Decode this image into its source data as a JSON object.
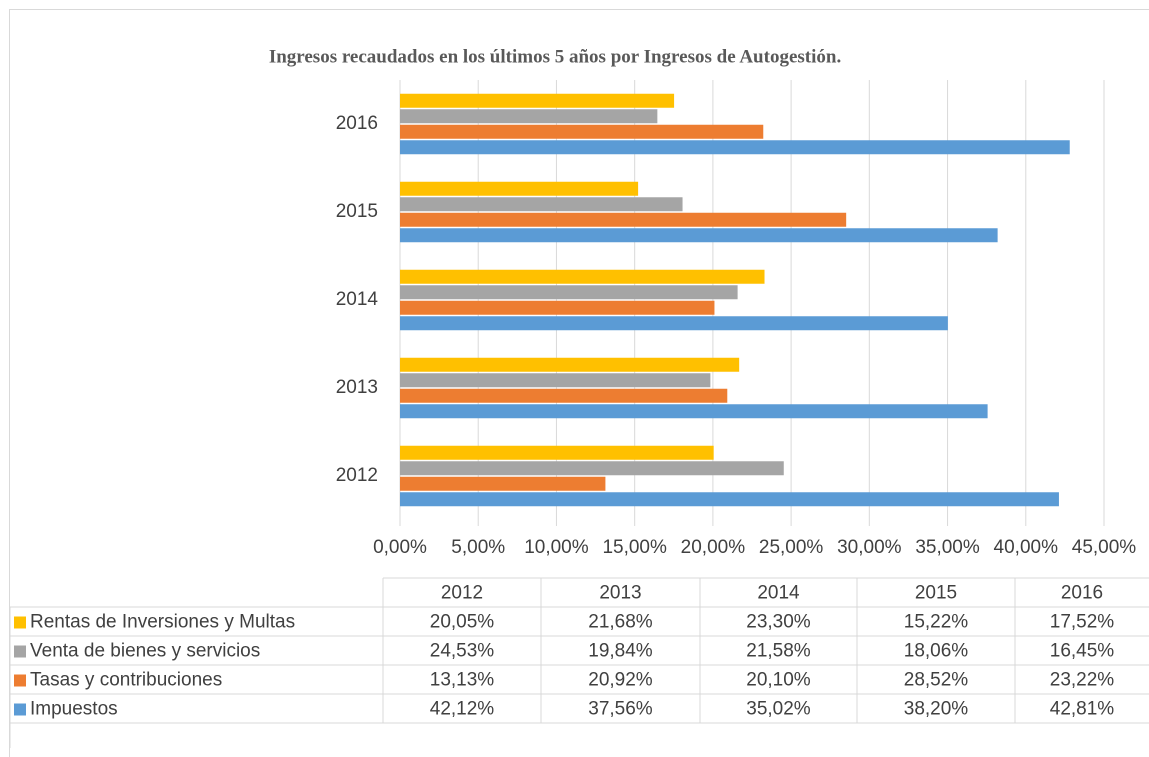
{
  "chart_data": {
    "type": "bar",
    "orientation": "horizontal",
    "title": "Ingresos recaudados en  los últimos 5 años por Ingresos de Autogestión.",
    "categories": [
      "2012",
      "2013",
      "2014",
      "2015",
      "2016"
    ],
    "series": [
      {
        "name": "Impuestos",
        "color": "#5b9bd5",
        "values": [
          42.12,
          37.56,
          35.02,
          38.2,
          42.81
        ],
        "value_labels": [
          "42,12%",
          "37,56%",
          "35,02%",
          "38,20%",
          "42,81%"
        ]
      },
      {
        "name": "Tasas y contribuciones",
        "color": "#ed7d31",
        "values": [
          13.13,
          20.92,
          20.1,
          28.52,
          23.22
        ],
        "value_labels": [
          "13,13%",
          "20,92%",
          "20,10%",
          "28,52%",
          "23,22%"
        ]
      },
      {
        "name": "Venta de bienes y servicios",
        "color": "#a5a5a5",
        "values": [
          24.53,
          19.84,
          21.58,
          18.06,
          16.45
        ],
        "value_labels": [
          "24,53%",
          "19,84%",
          "21,58%",
          "18,06%",
          "16,45%"
        ]
      },
      {
        "name": "Rentas de Inversiones y Multas",
        "color": "#ffc000",
        "values": [
          20.05,
          21.68,
          23.3,
          15.22,
          17.52
        ],
        "value_labels": [
          "20,05%",
          "21,68%",
          "23,30%",
          "15,22%",
          "17,52%"
        ]
      }
    ],
    "xlim": [
      0,
      45
    ],
    "xticks": [
      {
        "value": 0,
        "label": "0,00%"
      },
      {
        "value": 5,
        "label": "5,00%"
      },
      {
        "value": 10,
        "label": "10,00%"
      },
      {
        "value": 15,
        "label": "15,00%"
      },
      {
        "value": 20,
        "label": "20,00%"
      },
      {
        "value": 25,
        "label": "25,00%"
      },
      {
        "value": 30,
        "label": "30,00%"
      },
      {
        "value": 35,
        "label": "35,00%"
      },
      {
        "value": 40,
        "label": "40,00%"
      },
      {
        "value": 45,
        "label": "45,00%"
      }
    ],
    "grid": true,
    "data_table": true
  }
}
